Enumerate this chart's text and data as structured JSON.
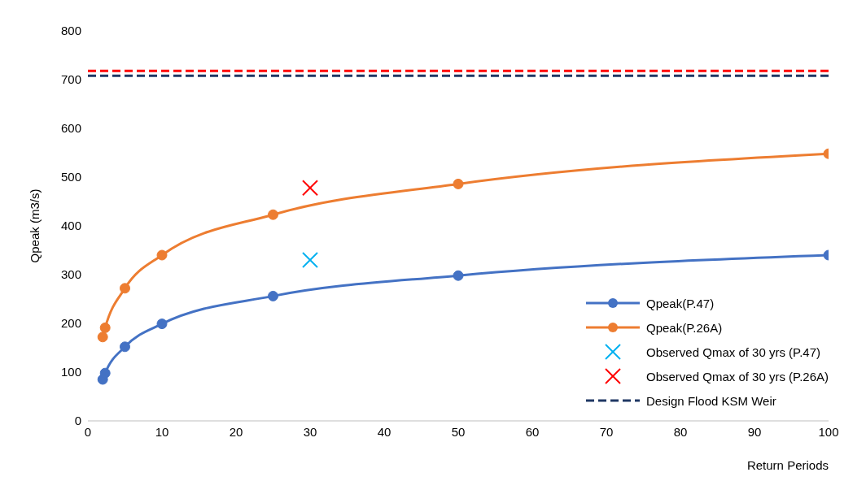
{
  "chart_data": {
    "type": "line",
    "xlabel": "Return Periods",
    "ylabel": "Qpeak (m3/s)",
    "xlim": [
      0,
      100
    ],
    "xticks": [
      0,
      10,
      20,
      30,
      40,
      50,
      60,
      70,
      80,
      90,
      100
    ],
    "ylim": [
      0,
      800
    ],
    "yticks": [
      0,
      100,
      200,
      300,
      400,
      500,
      600,
      700,
      800
    ],
    "grid": false,
    "legend": "bottom right",
    "marker": "circle",
    "line_style": "solid",
    "series": [
      {
        "name": "Qpeak(P.47)",
        "color": "#4472c4",
        "x": [
          2,
          2.33,
          5,
          10,
          25,
          50,
          100
        ],
        "values": [
          85,
          98,
          152,
          199,
          256,
          298,
          340
        ]
      },
      {
        "name": "Qpeak(P.26A)",
        "color": "#ed7d31",
        "x": [
          2,
          2.33,
          5,
          10,
          25,
          50,
          100
        ],
        "values": [
          172,
          191,
          272,
          340,
          423,
          486,
          548
        ]
      },
      {
        "name": "Observed Qmax of 30 yrs (P.47)",
        "type": "scatter",
        "marker": "cross",
        "color": "#00b0f0",
        "x": [
          30
        ],
        "values": [
          330
        ]
      },
      {
        "name": "Observed Qmax of 30 yrs (P.26A)",
        "type": "scatter",
        "marker": "cross",
        "color": "#ff0000",
        "x": [
          30
        ],
        "values": [
          478
        ]
      }
    ],
    "ref_lines": [
      {
        "axis": "y",
        "value": 718,
        "color": "#ff0000",
        "line_style": "dashed"
      },
      {
        "axis": "y",
        "value": 708,
        "label": "Design Flood KSM Weir",
        "color": "#203864",
        "line_style": "dashed"
      }
    ]
  }
}
